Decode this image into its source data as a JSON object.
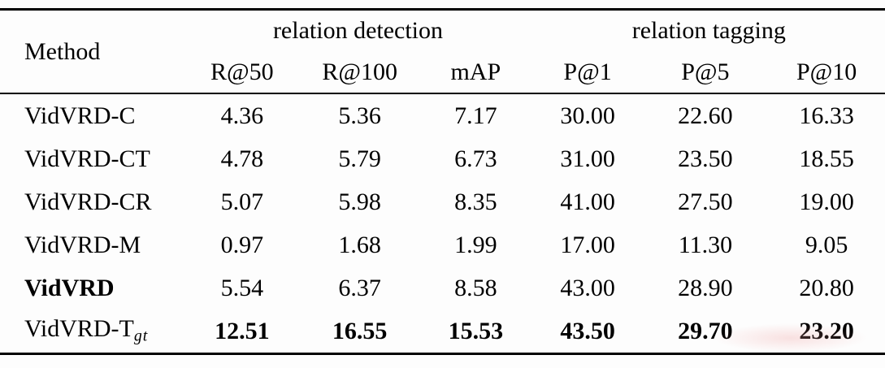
{
  "table": {
    "method_header": "Method",
    "groups": [
      {
        "label": "relation detection",
        "columns": [
          "R@50",
          "R@100",
          "mAP"
        ]
      },
      {
        "label": "relation tagging",
        "columns": [
          "P@1",
          "P@5",
          "P@10"
        ]
      }
    ],
    "rows": [
      {
        "method": "VidVRD-C",
        "values": [
          "4.36",
          "5.36",
          "7.17",
          "30.00",
          "22.60",
          "16.33"
        ]
      },
      {
        "method": "VidVRD-CT",
        "values": [
          "4.78",
          "5.79",
          "6.73",
          "31.00",
          "23.50",
          "18.55"
        ]
      },
      {
        "method": "VidVRD-CR",
        "values": [
          "5.07",
          "5.98",
          "8.35",
          "41.00",
          "27.50",
          "19.00"
        ]
      },
      {
        "method": "VidVRD-M",
        "values": [
          "0.97",
          "1.68",
          "1.99",
          "17.00",
          "11.30",
          "9.05"
        ]
      },
      {
        "method": "VidVRD",
        "values": [
          "5.54",
          "6.37",
          "8.58",
          "43.00",
          "28.90",
          "20.80"
        ]
      },
      {
        "method": "VidVRD-T",
        "method_sub": "gt",
        "values": [
          "12.51",
          "16.55",
          "15.53",
          "43.50",
          "29.70",
          "23.20"
        ]
      }
    ]
  },
  "colors": {
    "text": "#000000",
    "background": "#fdfdfd",
    "rule": "#000000"
  }
}
